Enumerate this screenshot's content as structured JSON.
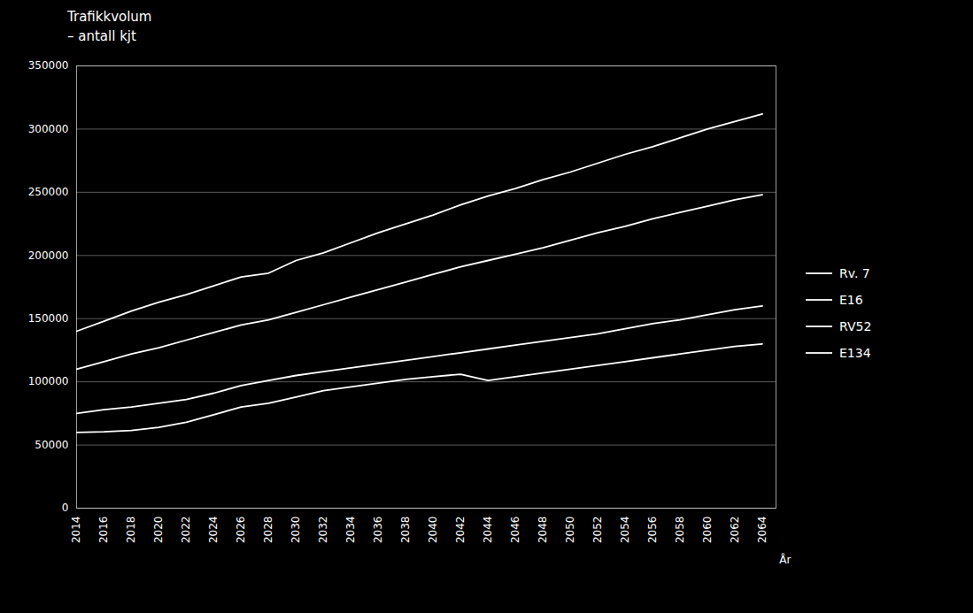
{
  "chart_data": {
    "type": "line",
    "title": "Trafikkvolum",
    "subtitle": "– antall kjt",
    "x_label": "År",
    "x": [
      2014,
      2016,
      2018,
      2020,
      2022,
      2024,
      2026,
      2028,
      2030,
      2032,
      2034,
      2036,
      2038,
      2040,
      2042,
      2044,
      2046,
      2048,
      2050,
      2052,
      2054,
      2056,
      2058,
      2060,
      2062,
      2064
    ],
    "series": [
      {
        "name": "Rv. 7",
        "color": "#ffffff",
        "values": [
          140000,
          148000,
          156000,
          163000,
          169000,
          176000,
          183000,
          186000,
          196000,
          202000,
          210000,
          218000,
          225000,
          232000,
          240000,
          247000,
          253000,
          260000,
          266000,
          273000,
          280000,
          286000,
          293000,
          300000,
          306000,
          312000
        ]
      },
      {
        "name": "E16",
        "color": "#ffffff",
        "values": [
          110000,
          116000,
          122000,
          127000,
          133000,
          139000,
          145000,
          149000,
          155000,
          161000,
          167000,
          173000,
          179000,
          185000,
          191000,
          196000,
          201000,
          206000,
          212000,
          218000,
          223000,
          229000,
          234000,
          239000,
          244000,
          248000
        ]
      },
      {
        "name": "RV52",
        "color": "#ffffff",
        "values": [
          75000,
          78000,
          80000,
          83000,
          86000,
          91000,
          97000,
          101000,
          105000,
          108000,
          111000,
          114000,
          117000,
          120000,
          123000,
          126000,
          129000,
          132000,
          135000,
          138000,
          142000,
          146000,
          149000,
          153000,
          157000,
          160000
        ]
      },
      {
        "name": "E134",
        "color": "#ffffff",
        "values": [
          60000,
          60500,
          61500,
          64000,
          68000,
          74000,
          80000,
          83000,
          88000,
          93000,
          96000,
          99000,
          102000,
          104000,
          106000,
          101000,
          104000,
          107000,
          110000,
          113000,
          116000,
          119000,
          122000,
          125000,
          128000,
          130000
        ]
      }
    ],
    "xlim": [
      2014,
      2065
    ],
    "xticks": [
      2014,
      2016,
      2018,
      2020,
      2022,
      2024,
      2026,
      2028,
      2030,
      2032,
      2034,
      2036,
      2038,
      2040,
      2042,
      2044,
      2046,
      2048,
      2050,
      2052,
      2054,
      2056,
      2058,
      2060,
      2062,
      2064
    ],
    "ylim": [
      0,
      350000
    ],
    "yticks": [
      0,
      50000,
      100000,
      150000,
      200000,
      250000,
      300000,
      350000
    ],
    "grid": "y",
    "legend": "right"
  }
}
